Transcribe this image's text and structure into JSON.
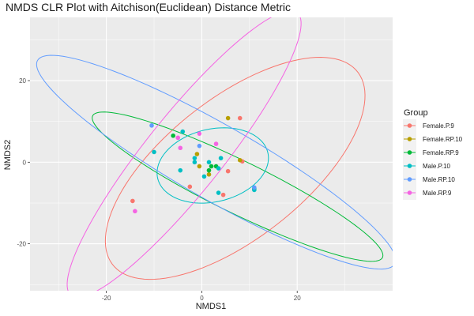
{
  "chart_data": {
    "type": "scatter",
    "title": "NMDS CLR Plot with Aitchison(Euclidean) Distance Metric",
    "xlabel": "NMDS1",
    "ylabel": "NMDS2",
    "xlim": [
      -36,
      40
    ],
    "ylim": [
      -31.5,
      35.5
    ],
    "x_ticks": [
      -20,
      0,
      20
    ],
    "y_ticks": [
      -20,
      0,
      20
    ],
    "x_tick_labels": [
      "-20",
      "0",
      "20"
    ],
    "y_tick_labels": [
      "-20",
      "0",
      "20"
    ],
    "grid": true,
    "legend": {
      "title": "Group",
      "position": "right"
    },
    "series": [
      {
        "name": "Female.P.9",
        "color": "#F8766D",
        "points": [
          [
            -14.5,
            -9.5
          ],
          [
            -2.5,
            -6
          ],
          [
            4.5,
            -8
          ],
          [
            5.5,
            -2.2
          ],
          [
            8,
            10.8
          ],
          [
            8.5,
            0.2
          ]
        ],
        "ellipse": {
          "cx": 7,
          "cy": -1.5,
          "rx": 35,
          "ry": 16,
          "angle_deg": 45
        }
      },
      {
        "name": "Female.RP.10",
        "color": "#B79F00",
        "points": [
          [
            5.5,
            10.8
          ],
          [
            -1,
            2
          ],
          [
            8,
            0.5
          ],
          [
            1.5,
            -3
          ],
          [
            -0.5,
            -1
          ]
        ],
        "ellipse": null
      },
      {
        "name": "Female.RP.9",
        "color": "#00BA38",
        "points": [
          [
            -6,
            6.5
          ],
          [
            2,
            -1
          ],
          [
            3,
            -1
          ],
          [
            1.5,
            -2
          ],
          [
            11,
            -6.5
          ]
        ],
        "ellipse": {
          "cx": 7.5,
          "cy": -6,
          "rx": 35,
          "ry": 6.2,
          "angle_deg": -30
        }
      },
      {
        "name": "Male.P.10",
        "color": "#00BFC4",
        "points": [
          [
            -10,
            2.5
          ],
          [
            -4,
            7.5
          ],
          [
            -1.5,
            1
          ],
          [
            -1.5,
            0
          ],
          [
            -4.5,
            -2
          ],
          [
            0.5,
            -3.5
          ],
          [
            1.5,
            0
          ],
          [
            3.5,
            -1.5
          ],
          [
            4,
            1
          ],
          [
            3.5,
            -7.5
          ],
          [
            11,
            -6.8
          ]
        ],
        "ellipse": {
          "cx": 2.3,
          "cy": -0.8,
          "rx": 12,
          "ry": 8.8,
          "angle_deg": 20
        }
      },
      {
        "name": "Male.RP.10",
        "color": "#619CFF",
        "points": [
          [
            -10.5,
            9
          ],
          [
            -0.5,
            4
          ],
          [
            11,
            -6.2
          ]
        ],
        "ellipse": {
          "cx": 3,
          "cy": 0,
          "rx": 45,
          "ry": 8.8,
          "angle_deg": -34
        }
      },
      {
        "name": "Male.RP.9",
        "color": "#F564E3",
        "points": [
          [
            -14,
            -12
          ],
          [
            -4.5,
            3.5
          ],
          [
            -0.5,
            7
          ],
          [
            3,
            4.5
          ],
          [
            -5,
            6
          ]
        ],
        "ellipse": {
          "cx": -3.7,
          "cy": 2,
          "rx": 42,
          "ry": 8.5,
          "angle_deg": 56
        }
      }
    ]
  }
}
